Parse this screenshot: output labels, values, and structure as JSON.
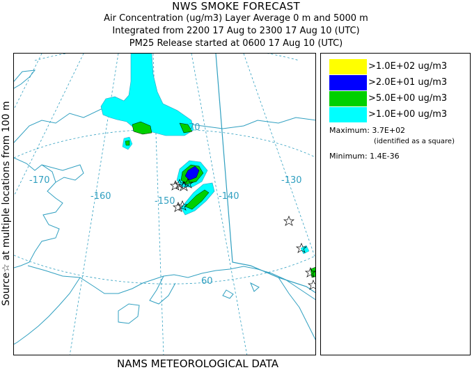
{
  "header": {
    "title": "NWS SMOKE FORECAST",
    "line2": "Air Concentration (ug/m3) Layer Average    0 m and  5000 m",
    "line3": "Integrated from 2200 17 Aug to 2300 17 Aug 10 (UTC)",
    "line4": "PM25 Release started at 0600 17 Aug 10 (UTC)"
  },
  "side_label": "Source☆  at multiple locations   from   100 m",
  "footer": "NAMS METEOROLOGICAL DATA",
  "map": {
    "longitude_labels": [
      "-170",
      "-160",
      "-150",
      "-140",
      "-130"
    ],
    "latitude_labels": [
      "70",
      "60"
    ],
    "colors": {
      "land_line": "#2f9fc0",
      "grid": "#2f9fc0",
      "border": "#2f9fc0"
    }
  },
  "legend": {
    "items": [
      {
        "label": ">1.0E+02 ug/m3",
        "color": "#ffff00"
      },
      {
        "label": ">2.0E+01 ug/m3",
        "color": "#0000ff"
      },
      {
        "label": ">5.0E+00 ug/m3",
        "color": "#00d000"
      },
      {
        "label": ">1.0E+00 ug/m3",
        "color": "#00ffff"
      }
    ],
    "maximum": "Maximum: 3.7E+02",
    "max_note": "(identified as a square)",
    "minimum": "Minimum: 1.4E-36"
  }
}
